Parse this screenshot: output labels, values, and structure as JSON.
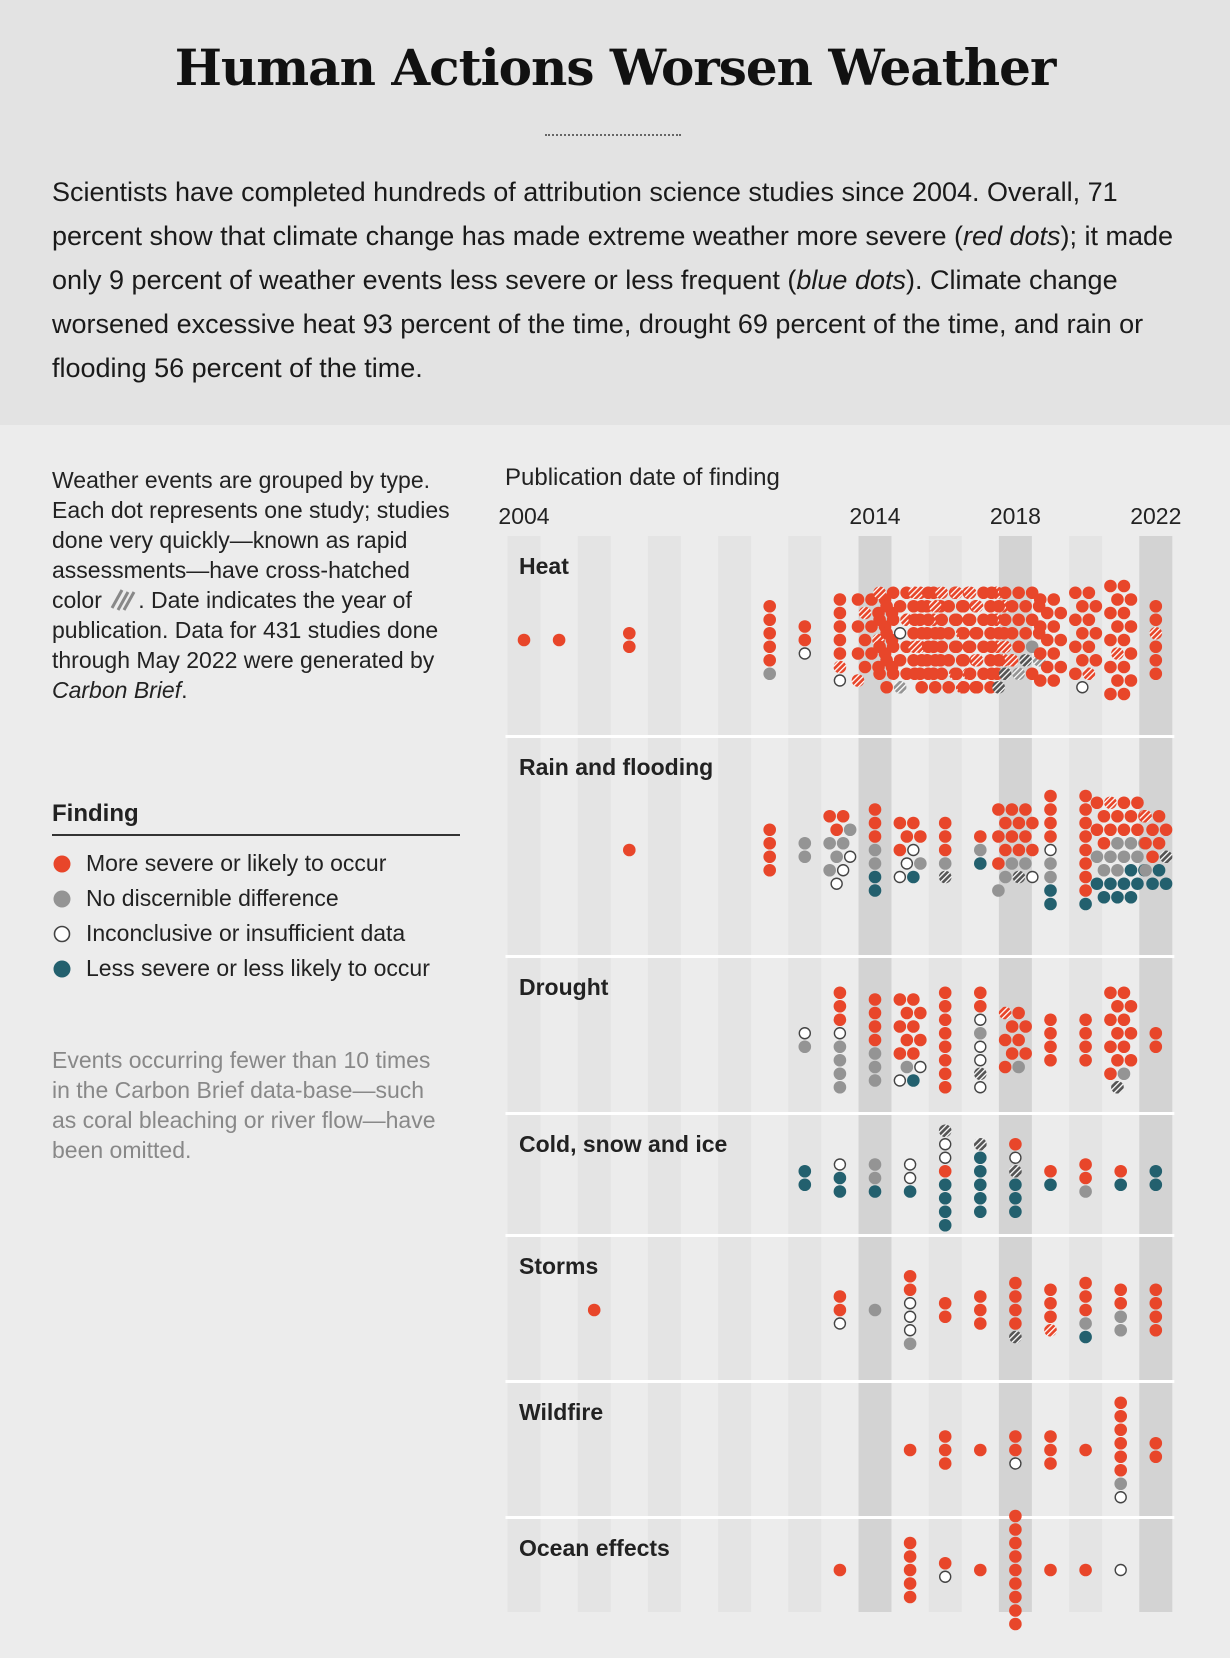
{
  "title": "Human Actions Worsen Weather",
  "intro": {
    "p1": "Scientists have completed hundreds of attribution science studies since 2004. Overall, 71 percent show that climate change has made extreme weather more severe (",
    "red_dots": "red dots",
    "p2": "); it made only 9 percent of weather events less severe or less frequent (",
    "blue_dots": "blue dots",
    "p3": "). Climate change worsened excessive heat 93 percent of the time, drought 69 percent of the time, and rain or flooding 56 percent of the time."
  },
  "notes": {
    "text1": "Weather events are grouped by type. Each dot represents one study; studies done very quickly—known as rapid assessments—have cross-hatched color",
    "text2": ". Date indicates the year of publication. Data for 431 studies done through May 2022 were generated by ",
    "source": "Carbon Brief",
    "end": "."
  },
  "legend": {
    "title": "Finding",
    "items": [
      {
        "label": "More severe or likely to occur",
        "color": "#e8462a",
        "style": "fill"
      },
      {
        "label": "No discernible difference",
        "color": "#949494",
        "style": "fill"
      },
      {
        "label": "Inconclusive or insufficient data",
        "color": "#444444",
        "style": "outline"
      },
      {
        "label": "Less severe or less likely to occur",
        "color": "#23606e",
        "style": "fill"
      }
    ]
  },
  "omitted_note": {
    "a": "Events occurring fewer than 10 times in the ",
    "b": "Carbon Brief",
    "c": " data-base—such as coral bleaching or river flow—have been omitted."
  },
  "colors": {
    "more": "#e8462a",
    "none": "#949494",
    "inconclusive": "#444444",
    "less": "#23606e",
    "stripe_light": "#e4e4e4",
    "stripe_dark": "#d3d3d3"
  },
  "chart_data": {
    "type": "scatter",
    "title": "Publication date of finding",
    "x_axis": {
      "min": 2004,
      "max": 2022,
      "tick_labels": [
        "2004",
        "2014",
        "2018",
        "2022"
      ]
    },
    "code_key": {
      "M": "more",
      "N": "none",
      "I": "inconclusive",
      "L": "less",
      "lowercase": "rapid assessment (cross-hatched)"
    },
    "categories": [
      {
        "name": "Heat",
        "years": {
          "2004": "M",
          "2005": "M",
          "2007": "MM",
          "2011": "MMMMMN",
          "2012": "MMI",
          "2013": "MMMMMmI",
          "2014": "MMMmMMMMMMmMMMMMMMm",
          "2015": "mMMmMMMMMMMMmMmMIMMMMMMmMMMMMMMMMMMMi",
          "2016": "mMmMMMmMMMMMMMMMMMmMmMMMMMMMMMMMMmmMMMmM",
          "2017": "mmMmMmMmMMMmMMMMMMMmMmMmMMMMMMM",
          "2018": "MMMMMMMMMMMMMMMMMmMNMmniMniMn",
          "2019": "MMMMMMMMMMMMMM",
          "2020": "MMMMMMMMMMMMMmI",
          "2021": "MMMMMMMMMMmMMMMMMM",
          "2022": "MMmMMM"
        }
      },
      {
        "name": "Rain and flooding",
        "years": {
          "2007": "M",
          "2011": "MMMM",
          "2012": "NN",
          "2013": "MMMNNNNINII",
          "2014": "MMMNNLL",
          "2015": "MMMMMIINIL",
          "2016": "MMMNn",
          "2017": "MNL",
          "2018": "MMMMMMMMMMMMMNNNnIN",
          "2019": "MMMMINNLL",
          "2020": "MMMMMMMML",
          "2021": "MmMMMMMMMMMMMNNNNNNNNNLLLLLLLLL",
          "2022": "mMMMMMMnNLLL"
        }
      },
      {
        "name": "Drought",
        "years": {
          "2012": "IN",
          "2013": "MMMINNNN",
          "2014": "MMMMNNN",
          "2015": "MMMMMMMMMMNIIL",
          "2016": "MMMMMMMM",
          "2017": "MMINIInI",
          "2018": "mMMMMMMMMN",
          "2019": "MMMM",
          "2020": "MMMM",
          "2021": "MMMMMMMMMMMMMNn",
          "2022": "MM"
        }
      },
      {
        "name": "Cold, snow and ice",
        "years": {
          "2012": "LL",
          "2013": "ILL",
          "2014": "NNL",
          "2015": "IIL",
          "2016": "nIIMLLLL",
          "2017": "nLLLLL",
          "2018": "MInLLL",
          "2019": "ML",
          "2020": "MMN",
          "2021": "ML",
          "2022": "LL"
        }
      },
      {
        "name": "Storms",
        "years": {
          "2006": "M",
          "2013": "MMI",
          "2014": "N",
          "2015": "MMIIIN",
          "2016": "MM",
          "2017": "MMM",
          "2018": "MMMMn",
          "2019": "MMMm",
          "2020": "MMMNL",
          "2021": "MMNN",
          "2022": "MMMM"
        }
      },
      {
        "name": "Wildfire",
        "years": {
          "2015": "M",
          "2016": "MMM",
          "2017": "M",
          "2018": "MMI",
          "2019": "MMM",
          "2020": "M",
          "2021": "MMMMMMNI",
          "2022": "MM"
        }
      },
      {
        "name": "Ocean effects",
        "years": {
          "2013": "M",
          "2015": "MMMMM",
          "2016": "MI",
          "2017": "M",
          "2018": "MMMMMMMMM",
          "2019": "M",
          "2020": "M",
          "2021": "I"
        }
      }
    ]
  }
}
